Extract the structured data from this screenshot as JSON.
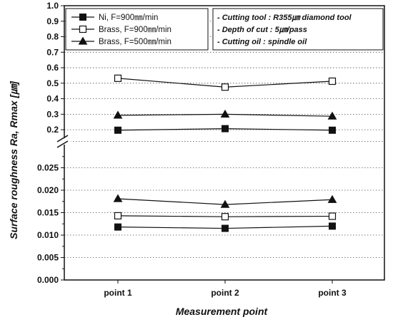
{
  "chart_data": {
    "type": "line",
    "categories": [
      "point 1",
      "point 2",
      "point 3"
    ],
    "xlabel": "Measurement point",
    "ylabel": "Surface roughness Ra, Rmax [㎛]",
    "y_axis_break": true,
    "upper_ylim": [
      0.15,
      1.0
    ],
    "upper_yticks": [
      "0.2",
      "0.3",
      "0.4",
      "0.5",
      "0.6",
      "0.7",
      "0.8",
      "0.9",
      "1.0"
    ],
    "lower_ylim": [
      0.0,
      0.03
    ],
    "lower_yticks": [
      "0.000",
      "0.005",
      "0.010",
      "0.015",
      "0.020",
      "0.025"
    ],
    "grid": true,
    "legend_position": "top-left",
    "series": [
      {
        "name": "Ni, F=900㎜/min",
        "marker": "filled-square",
        "panel": "upper",
        "values": [
          0.197,
          0.207,
          0.197
        ]
      },
      {
        "name": "Brass, F=900㎜/min",
        "marker": "open-square",
        "panel": "upper",
        "values": [
          0.532,
          0.475,
          0.513
        ]
      },
      {
        "name": "Brass, F=500㎜/min",
        "marker": "filled-triangle",
        "panel": "upper",
        "values": [
          0.293,
          0.3,
          0.287
        ]
      },
      {
        "name": "",
        "marker": "filled-square",
        "panel": "lower",
        "values": [
          0.0118,
          0.0115,
          0.012
        ]
      },
      {
        "name": "",
        "marker": "open-square",
        "panel": "lower",
        "values": [
          0.0143,
          0.0141,
          0.0142
        ]
      },
      {
        "name": "",
        "marker": "filled-triangle",
        "panel": "lower",
        "values": [
          0.0181,
          0.0168,
          0.0179
        ]
      }
    ],
    "annotations": [
      "- Cutting tool : R355㎛ diamond tool",
      "- Depth of cut : 5㎛/pass",
      "- Cutting oil  : spindle oil"
    ]
  }
}
